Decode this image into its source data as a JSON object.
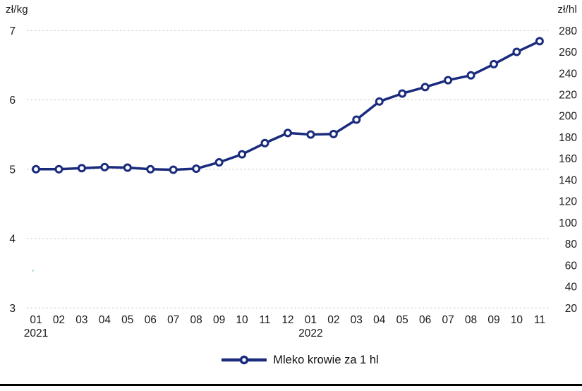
{
  "page": {
    "background": "#ffffff",
    "text_color": "#1a1a1a",
    "grid_color": "#c6c6c6"
  },
  "chart_data": {
    "type": "line",
    "title": "",
    "left_axis": {
      "unit": "zł/kg",
      "ticks": [
        "7",
        "6",
        "5",
        "4",
        "3"
      ],
      "range": [
        3,
        7
      ]
    },
    "right_axis": {
      "unit": "zł/hl",
      "ticks": [
        "280",
        "260",
        "240",
        "220",
        "200",
        "180",
        "160",
        "140",
        "120",
        "100",
        "80",
        "60",
        "40",
        "20"
      ],
      "range": [
        20,
        280
      ]
    },
    "x_labels": [
      "01",
      "02",
      "03",
      "04",
      "05",
      "06",
      "07",
      "08",
      "09",
      "10",
      "11",
      "12",
      "01",
      "02",
      "03",
      "04",
      "05",
      "06",
      "07",
      "08",
      "09",
      "10",
      "11"
    ],
    "year_labels": [
      {
        "label": "2021",
        "index": 0
      },
      {
        "label": "2022",
        "index": 12
      }
    ],
    "grid": "horizontal-dashed",
    "legend_position": "bottom-center",
    "series": [
      {
        "name": "Mleko krowie za 1 hl",
        "axis": "right",
        "unit": "zł/hl",
        "color": "#1a2b7e",
        "marker": "circle-open",
        "values": [
          150,
          150,
          151,
          152,
          151.5,
          150,
          149.5,
          150.5,
          156.5,
          164,
          174.5,
          184,
          182.5,
          183,
          196.5,
          213.5,
          221,
          227,
          233.5,
          238,
          248.5,
          260,
          270
        ]
      }
    ]
  }
}
